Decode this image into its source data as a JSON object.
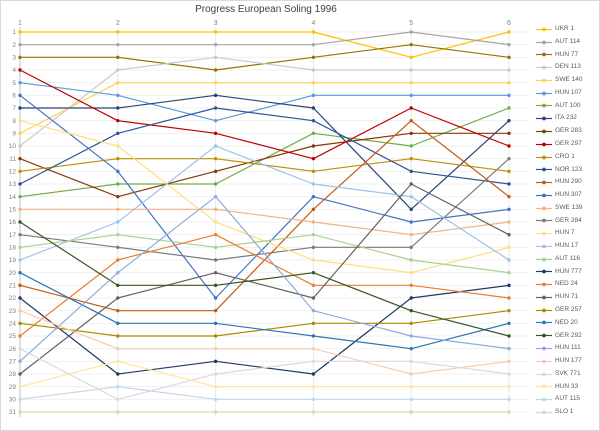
{
  "window": {
    "background": "#ffffff",
    "border_color": "#d9d9d9"
  },
  "text_colors": {
    "title": "#404040",
    "tick_label": "#808080",
    "legend_label": "#595959"
  },
  "grid_colors": {
    "h_gridline": "#f0f0f0",
    "v_gridline": "#e9e9e9",
    "y_axis_line": "#c0c0c0"
  },
  "chart_data": {
    "type": "line",
    "title": "Progress European Soling 1996",
    "subtitle": "",
    "xlabel": "",
    "ylabel": "",
    "x_ticks": [
      "1",
      "2",
      "3",
      "4",
      "5",
      "6"
    ],
    "x_ticks_position": "top",
    "y_ticks": [
      "1",
      "2",
      "3",
      "4",
      "5",
      "6",
      "7",
      "8",
      "9",
      "10",
      "11",
      "12",
      "13",
      "14",
      "15",
      "16",
      "17",
      "18",
      "19",
      "20",
      "21",
      "22",
      "23",
      "24",
      "25",
      "26",
      "27",
      "28",
      "29",
      "30",
      "31"
    ],
    "ylim": [
      1,
      31
    ],
    "y_axis_inverted": true,
    "grid": true,
    "markers": true,
    "legend_position": "right",
    "x": [
      1,
      2,
      3,
      4,
      5,
      6
    ],
    "series": [
      {
        "name": "UKR 1",
        "color": "#FFC000",
        "positions": [
          1,
          1,
          1,
          1,
          3,
          1
        ]
      },
      {
        "name": "AUT 114",
        "color": "#A5A5A5",
        "positions": [
          2,
          2,
          2,
          2,
          1,
          2
        ]
      },
      {
        "name": "HUN 77",
        "color": "#997300",
        "positions": [
          3,
          3,
          4,
          3,
          2,
          3
        ]
      },
      {
        "name": "DEN 113",
        "color": "#C9C9C9",
        "positions": [
          10,
          4,
          3,
          4,
          4,
          4
        ]
      },
      {
        "name": "SWE 140",
        "color": "#FFD24D",
        "positions": [
          9,
          5,
          5,
          5,
          5,
          5
        ]
      },
      {
        "name": "HUN 107",
        "color": "#5B9BD5",
        "positions": [
          5,
          6,
          8,
          6,
          6,
          6
        ]
      },
      {
        "name": "AUT 100",
        "color": "#70AD47",
        "positions": [
          14,
          13,
          13,
          9,
          10,
          7
        ]
      },
      {
        "name": "ITA 232",
        "color": "#264478",
        "positions": [
          7,
          7,
          6,
          7,
          15,
          8
        ]
      },
      {
        "name": "GER 283",
        "color": "#843C0C",
        "positions": [
          11,
          14,
          12,
          10,
          9,
          9
        ]
      },
      {
        "name": "GER 297",
        "color": "#C00000",
        "positions": [
          4,
          8,
          9,
          11,
          7,
          10
        ]
      },
      {
        "name": "CRO 1",
        "color": "#BF8F00",
        "positions": [
          12,
          11,
          11,
          12,
          11,
          12
        ]
      },
      {
        "name": "NOR 123",
        "color": "#2F5597",
        "positions": [
          13,
          9,
          7,
          8,
          12,
          13
        ]
      },
      {
        "name": "HUN 290",
        "color": "#C55A11",
        "positions": [
          21,
          23,
          23,
          15,
          8,
          14
        ]
      },
      {
        "name": "HUN 307",
        "color": "#4472C4",
        "positions": [
          6,
          12,
          22,
          14,
          16,
          15
        ]
      },
      {
        "name": "SWE 139",
        "color": "#F4B183",
        "positions": [
          15,
          15,
          15,
          16,
          17,
          16
        ]
      },
      {
        "name": "GER 284",
        "color": "#7B7B7B",
        "positions": [
          17,
          18,
          19,
          18,
          18,
          11
        ]
      },
      {
        "name": "HUN 7",
        "color": "#FFDE7D",
        "positions": [
          8,
          10,
          16,
          19,
          20,
          18
        ]
      },
      {
        "name": "HUN 17",
        "color": "#9DC3E6",
        "positions": [
          19,
          16,
          10,
          13,
          14,
          19
        ]
      },
      {
        "name": "AUT 116",
        "color": "#A9D18E",
        "positions": [
          18,
          17,
          18,
          17,
          19,
          20
        ]
      },
      {
        "name": "HUN 777",
        "color": "#1F3864",
        "positions": [
          22,
          28,
          27,
          28,
          22,
          21
        ]
      },
      {
        "name": "NED 24",
        "color": "#ED7D31",
        "positions": [
          25,
          19,
          17,
          21,
          21,
          22
        ]
      },
      {
        "name": "HUN 71",
        "color": "#636363",
        "positions": [
          28,
          22,
          20,
          22,
          13,
          17
        ]
      },
      {
        "name": "GER 257",
        "color": "#AB8A00",
        "positions": [
          24,
          25,
          25,
          24,
          24,
          23
        ]
      },
      {
        "name": "NED 20",
        "color": "#2E75B6",
        "positions": [
          20,
          24,
          24,
          25,
          26,
          24
        ]
      },
      {
        "name": "GER 292",
        "color": "#375623",
        "positions": [
          16,
          21,
          21,
          20,
          23,
          25
        ]
      },
      {
        "name": "HUN 111",
        "color": "#8FAADC",
        "positions": [
          27,
          20,
          14,
          23,
          25,
          26
        ]
      },
      {
        "name": "HUN 177",
        "color": "#F8CBAD",
        "positions": [
          23,
          26,
          26,
          26,
          28,
          27
        ]
      },
      {
        "name": "SVK 771",
        "color": "#DBDBDB",
        "positions": [
          26,
          30,
          28,
          27,
          27,
          28
        ]
      },
      {
        "name": "HUN 33",
        "color": "#FFE699",
        "positions": [
          29,
          27,
          29,
          29,
          29,
          29
        ]
      },
      {
        "name": "AUT 115",
        "color": "#BDD7EE",
        "positions": [
          30,
          29,
          30,
          30,
          30,
          30
        ]
      },
      {
        "name": "SLO 1",
        "color": "#C5E0B4",
        "positions": [
          31,
          31,
          31,
          31,
          31,
          31
        ]
      }
    ]
  }
}
